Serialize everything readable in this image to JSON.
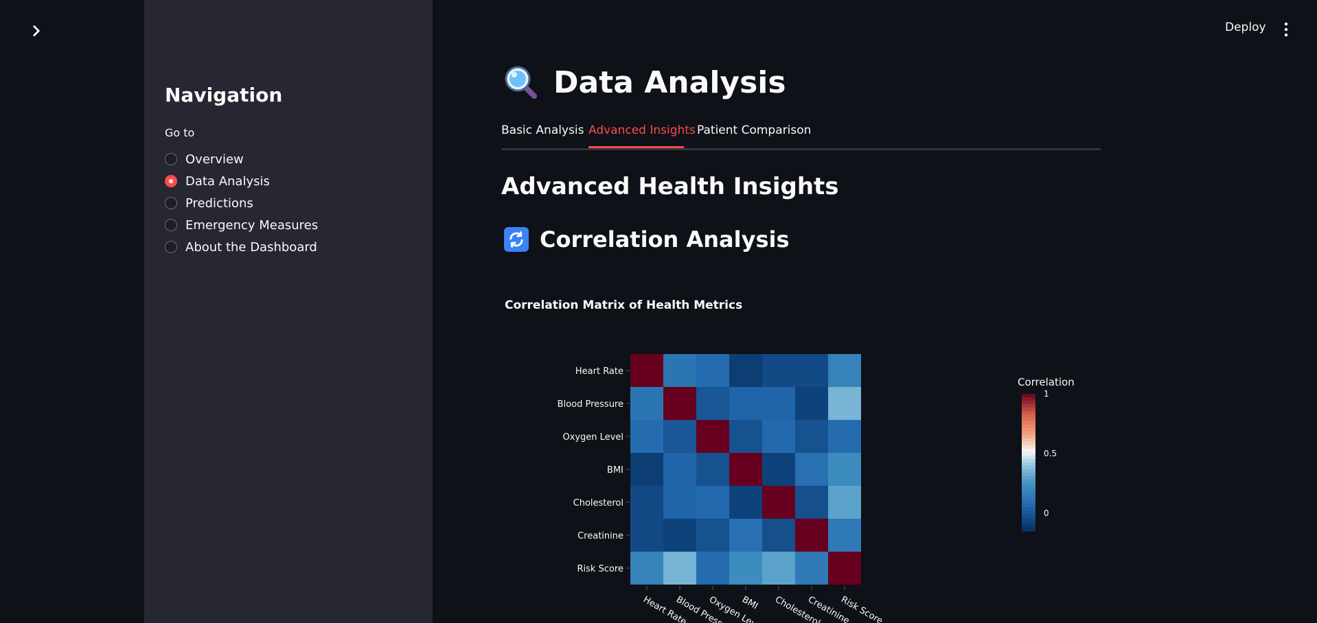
{
  "sidebar": {
    "title": "Navigation",
    "goto_label": "Go to",
    "items": [
      {
        "label": "Overview",
        "selected": false
      },
      {
        "label": "Data Analysis",
        "selected": true
      },
      {
        "label": "Predictions",
        "selected": false
      },
      {
        "label": "Emergency Measures",
        "selected": false
      },
      {
        "label": "About the Dashboard",
        "selected": false
      }
    ]
  },
  "header": {
    "deploy_label": "Deploy"
  },
  "page": {
    "title": "Data Analysis",
    "tabs": [
      {
        "label": "Basic Analysis",
        "active": false
      },
      {
        "label": "Advanced Insights",
        "active": true
      },
      {
        "label": "Patient Comparison",
        "active": false
      }
    ],
    "section_title": "Advanced Health Insights",
    "subsection_title": "Correlation Analysis"
  },
  "colors": {
    "accent": "#ff4b4b",
    "background": "#0e1117",
    "sidebar": "#262730"
  },
  "chart_data": {
    "type": "heatmap",
    "title": "Correlation Matrix of Health Metrics",
    "rows": [
      "Heart Rate",
      "Blood Pressure",
      "Oxygen Level",
      "BMI",
      "Cholesterol",
      "Creatinine",
      "Risk Score"
    ],
    "columns": [
      "Heart Rate",
      "Blood Pressure",
      "Oxygen Level",
      "BMI",
      "Cholesterol",
      "Creatinine",
      "Risk Score"
    ],
    "values": [
      [
        1.0,
        0.12,
        0.08,
        -0.1,
        -0.05,
        -0.05,
        0.18
      ],
      [
        0.12,
        1.0,
        0.0,
        0.05,
        0.05,
        -0.08,
        0.35
      ],
      [
        0.08,
        0.0,
        1.0,
        -0.02,
        0.07,
        -0.02,
        0.08
      ],
      [
        -0.1,
        0.05,
        -0.02,
        1.0,
        -0.08,
        0.1,
        0.22
      ],
      [
        -0.05,
        0.05,
        0.07,
        -0.08,
        1.0,
        -0.03,
        0.3
      ],
      [
        -0.05,
        -0.08,
        -0.02,
        0.1,
        -0.03,
        1.0,
        0.14
      ],
      [
        0.18,
        0.35,
        0.08,
        0.22,
        0.3,
        0.14,
        1.0
      ]
    ],
    "colorscale": "RdBu",
    "colorbar": {
      "title": "Correlation",
      "ticks": [
        0,
        0.5,
        1
      ],
      "tick_labels": [
        "0",
        "0.5",
        "1"
      ]
    },
    "zlim": [
      -0.15,
      1
    ]
  }
}
